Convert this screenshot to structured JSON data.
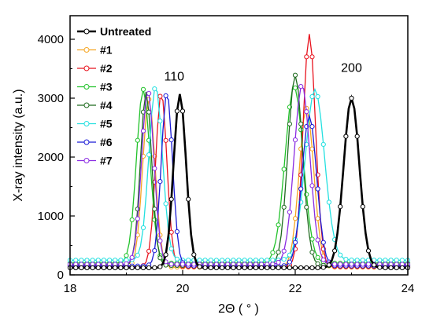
{
  "chart_data": {
    "type": "scatter",
    "xlabel": "2Θ ( ° )",
    "ylabel": "X-ray intensity (a.u.)",
    "xlim": [
      18,
      24
    ],
    "ylim": [
      0,
      4400
    ],
    "xticks": [
      "18",
      "20",
      "22",
      "24"
    ],
    "yticks": [
      "0",
      "1000",
      "2000",
      "3000",
      "4000"
    ],
    "grid": false,
    "legend_position": "top-left",
    "annotations": [
      {
        "text": "110",
        "x": 19.85,
        "y": 3300
      },
      {
        "text": "200",
        "x": 23.0,
        "y": 3450
      }
    ],
    "series": [
      {
        "name": "Untreated",
        "color": "#000000",
        "baseline": 120,
        "peaks": [
          {
            "center": 19.95,
            "height": 2950,
            "width": 0.11
          },
          {
            "center": 23.0,
            "height": 2880,
            "width": 0.14
          }
        ]
      },
      {
        "name": "#1",
        "color": "#f5a623",
        "baseline": 130,
        "peaks": [
          {
            "center": 19.4,
            "height": 2850,
            "width": 0.11
          },
          {
            "center": 22.2,
            "height": 2700,
            "width": 0.13
          }
        ]
      },
      {
        "name": "#2",
        "color": "#e8131e",
        "baseline": 140,
        "peaks": [
          {
            "center": 19.62,
            "height": 2950,
            "width": 0.1
          },
          {
            "center": 22.25,
            "height": 3950,
            "width": 0.11
          }
        ]
      },
      {
        "name": "#3",
        "color": "#21c22a",
        "baseline": 200,
        "peaks": [
          {
            "center": 19.3,
            "height": 2950,
            "width": 0.12
          },
          {
            "center": 21.98,
            "height": 3000,
            "width": 0.16
          }
        ]
      },
      {
        "name": "#4",
        "color": "#1f6b1f",
        "baseline": 160,
        "peaks": [
          {
            "center": 19.35,
            "height": 2950,
            "width": 0.1
          },
          {
            "center": 22.0,
            "height": 3230,
            "width": 0.13
          }
        ]
      },
      {
        "name": "#5",
        "color": "#24e0e0",
        "baseline": 250,
        "peaks": [
          {
            "center": 19.52,
            "height": 2950,
            "width": 0.12
          },
          {
            "center": 22.35,
            "height": 2900,
            "width": 0.17
          }
        ]
      },
      {
        "name": "#6",
        "color": "#1a1ad6",
        "baseline": 150,
        "peaks": [
          {
            "center": 19.72,
            "height": 2950,
            "width": 0.1
          },
          {
            "center": 22.25,
            "height": 2550,
            "width": 0.13
          }
        ]
      },
      {
        "name": "#7",
        "color": "#8a2be2",
        "baseline": 180,
        "peaks": [
          {
            "center": 19.38,
            "height": 2950,
            "width": 0.11
          },
          {
            "center": 22.12,
            "height": 3050,
            "width": 0.14
          }
        ]
      }
    ]
  }
}
